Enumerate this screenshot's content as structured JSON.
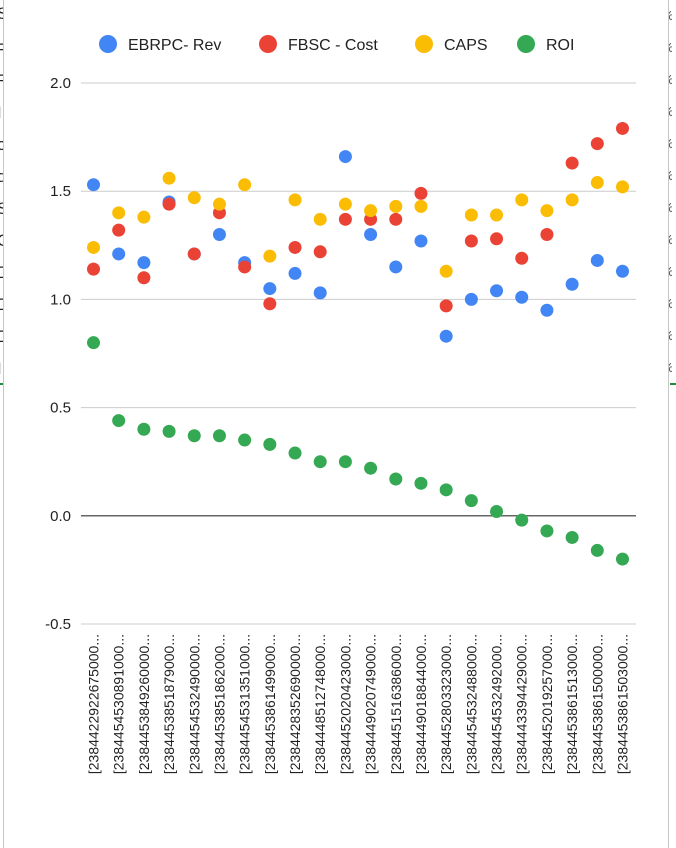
{
  "background": {
    "left_letters": [
      "S",
      "R",
      "R",
      "I",
      "c",
      "d",
      "S",
      "O",
      "D",
      "D",
      "D",
      "I"
    ],
    "right_marks": [
      "%",
      "%",
      "%",
      "%",
      "%",
      "%",
      "%",
      "%",
      "%",
      "%",
      "%",
      "%"
    ]
  },
  "chart_data": {
    "type": "scatter",
    "title": "",
    "xlabel": "",
    "ylabel": "",
    "ylim": [
      -0.5,
      2.0
    ],
    "yticks": [
      "2.0",
      "1.5",
      "1.0",
      "0.5",
      "0.0",
      "-0.5"
    ],
    "grid": true,
    "legend_position": "top",
    "categories": [
      "[2384422922675000...",
      "[2384454530891000...",
      "[2384453849260000...",
      "[2384453851879000...",
      "[2384454532490000...",
      "[2384453851862000...",
      "[2384454531351000...",
      "[2384453861499000...",
      "[2384428352690000...",
      "[2384448512748000...",
      "[2384452020423000...",
      "[2384449020749000...",
      "[2384451516386000...",
      "[2384449018844000...",
      "[2384452803323000...",
      "[2384454532488000...",
      "[2384454532492000...",
      "[2384443394429000...",
      "[2384452019257000...",
      "[2384453861513000...",
      "[2384453861500000...",
      "[2384453861503000..."
    ],
    "series": [
      {
        "name": "EBRPC- Rev",
        "color": "#4285f4",
        "values": [
          1.53,
          1.21,
          1.17,
          1.45,
          1.21,
          1.3,
          1.17,
          1.05,
          1.12,
          1.03,
          1.66,
          1.3,
          1.15,
          1.27,
          0.83,
          1.0,
          1.04,
          1.01,
          0.95,
          1.07,
          1.18,
          1.13
        ]
      },
      {
        "name": "FBSC - Cost",
        "color": "#ea4335",
        "values": [
          1.14,
          1.32,
          1.1,
          1.44,
          1.21,
          1.4,
          1.15,
          0.98,
          1.24,
          1.22,
          1.37,
          1.37,
          1.37,
          1.49,
          0.97,
          1.27,
          1.28,
          1.19,
          1.3,
          1.63,
          1.72,
          1.79
        ]
      },
      {
        "name": "CAPS",
        "color": "#fbbc04",
        "values": [
          1.24,
          1.4,
          1.38,
          1.56,
          1.47,
          1.44,
          1.53,
          1.2,
          1.46,
          1.37,
          1.44,
          1.41,
          1.43,
          1.43,
          1.13,
          1.39,
          1.39,
          1.46,
          1.41,
          1.46,
          1.54,
          1.52
        ]
      },
      {
        "name": "ROI",
        "color": "#34a853",
        "values": [
          0.8,
          0.44,
          0.4,
          0.39,
          0.37,
          0.37,
          0.35,
          0.33,
          0.29,
          0.25,
          0.25,
          0.22,
          0.17,
          0.15,
          0.12,
          0.07,
          0.02,
          -0.02,
          -0.07,
          -0.1,
          -0.16,
          -0.2
        ]
      }
    ]
  }
}
